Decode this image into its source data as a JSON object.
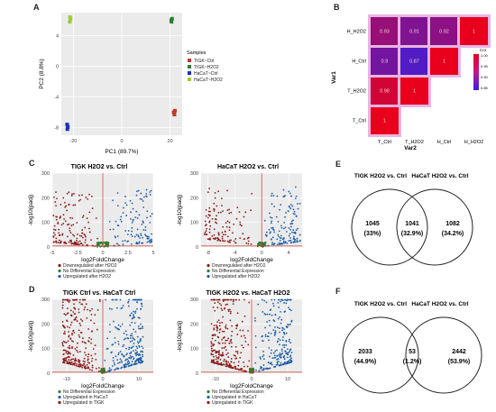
{
  "panels": {
    "A": {
      "letter": "A",
      "xlabel": "PC1 (89.7%)",
      "ylabel": "PC2 (8.8%)",
      "xticks": [
        "-20",
        "0",
        "20"
      ],
      "yticks": [
        "4",
        "0",
        "-4",
        "-8"
      ],
      "legend_title": "Samples",
      "legend": [
        {
          "label": "TIGK~Ctrl",
          "color": "#c0392b"
        },
        {
          "label": "TIGK~H2O2",
          "color": "#2e7d32"
        },
        {
          "label": "HaCaT~Ctrl",
          "color": "#1f2fbf"
        },
        {
          "label": "HaCaT~H2O2",
          "color": "#9acd32"
        }
      ],
      "chart_data": {
        "type": "scatter",
        "xlabel": "PC1 (89.7%)",
        "ylabel": "PC2 (8.8%)",
        "xlim": [
          -25,
          25
        ],
        "ylim": [
          -9,
          7
        ],
        "series": [
          {
            "name": "TIGK~Ctrl",
            "color": "#c0392b",
            "points": [
              [
                21.5,
                -6.0
              ],
              [
                22.0,
                -5.8
              ],
              [
                21.8,
                -6.3
              ]
            ]
          },
          {
            "name": "TIGK~H2O2",
            "color": "#2e7d32",
            "points": [
              [
                20.6,
                5.8
              ],
              [
                20.8,
                6.2
              ],
              [
                20.5,
                6.0
              ]
            ]
          },
          {
            "name": "HaCaT~Ctrl",
            "color": "#1f2fbf",
            "points": [
              [
                -22.6,
                -7.6
              ],
              [
                -22.3,
                -7.9
              ],
              [
                -22.5,
                -8.2
              ]
            ]
          },
          {
            "name": "HaCaT~H2O2",
            "color": "#9acd32",
            "points": [
              [
                -21.5,
                5.8
              ],
              [
                -21.2,
                6.2
              ],
              [
                -21.4,
                6.4
              ]
            ]
          }
        ]
      }
    },
    "B": {
      "letter": "B",
      "xlabel": "Var2",
      "ylabel": "Var1",
      "legend_title": "Cor",
      "legend_ticks": [
        "1.00",
        "0.95",
        "0.90",
        "0.85"
      ],
      "rows": [
        "H_H2O2",
        "H_Ctrl",
        "T_H2O2",
        "T_Ctrl"
      ],
      "cols": [
        "T_Ctrl",
        "T_H2O2",
        "H_Ctrl",
        "H_H2O2"
      ],
      "chart_data": {
        "type": "heatmap",
        "xlabel": "Var2",
        "ylabel": "Var1",
        "cells": [
          {
            "row": "T_Ctrl",
            "col": "T_Ctrl",
            "value": 1.0,
            "label": "1"
          },
          {
            "row": "T_H2O2",
            "col": "T_Ctrl",
            "value": 0.98,
            "label": "0.98"
          },
          {
            "row": "T_H2O2",
            "col": "T_H2O2",
            "value": 1.0,
            "label": "1"
          },
          {
            "row": "H_Ctrl",
            "col": "T_Ctrl",
            "value": 0.9,
            "label": "0.9"
          },
          {
            "row": "H_Ctrl",
            "col": "T_H2O2",
            "value": 0.87,
            "label": "0.87"
          },
          {
            "row": "H_Ctrl",
            "col": "H_Ctrl",
            "value": 1.0,
            "label": "1"
          },
          {
            "row": "H_H2O2",
            "col": "T_Ctrl",
            "value": 0.93,
            "label": "0.93"
          },
          {
            "row": "H_H2O2",
            "col": "T_H2O2",
            "value": 0.91,
            "label": "0.91"
          },
          {
            "row": "H_H2O2",
            "col": "H_Ctrl",
            "value": 0.92,
            "label": "0.92"
          },
          {
            "row": "H_H2O2",
            "col": "H_H2O2",
            "value": 1.0,
            "label": "1"
          }
        ]
      }
    },
    "C1": {
      "letter": "C",
      "title": "TIGK H2O2 vs. Ctrl",
      "xlabel": "log2FoldChange",
      "ylabel": "-log10(padj)",
      "xticks": [
        "-5",
        "-2.5",
        "0",
        "2.5",
        "5"
      ],
      "yticks": [
        "0",
        "100",
        "200",
        "300"
      ],
      "legend": [
        {
          "label": "Downregulated after H2O2",
          "color": "#8b1a1a"
        },
        {
          "label": "No Differential Expression",
          "color": "#2e7d32"
        },
        {
          "label": "Upregulated after H2O2",
          "color": "#1f5fa8"
        }
      ],
      "chart_data": {
        "type": "scatter",
        "xlabel": "log2FoldChange",
        "ylabel": "-log10(padj)",
        "xlim": [
          -5,
          5
        ],
        "ylim": [
          0,
          300
        ]
      }
    },
    "C2": {
      "title": "HaCaT H2O2 vs. Ctrl",
      "xlabel": "log2FoldChange",
      "ylabel": "-log10(padj)",
      "xticks": [
        "-8",
        "-4",
        "0",
        "4"
      ],
      "yticks": [
        "0",
        "100",
        "200",
        "300"
      ],
      "legend": [
        {
          "label": "Downregulated after H2O2",
          "color": "#8b1a1a"
        },
        {
          "label": "No Differential Expression",
          "color": "#2e7d32"
        },
        {
          "label": "Upregulated after H2O2",
          "color": "#1f5fa8"
        }
      ],
      "chart_data": {
        "type": "scatter",
        "xlabel": "log2FoldChange",
        "ylabel": "-log10(padj)",
        "xlim": [
          -9,
          6
        ],
        "ylim": [
          0,
          300
        ]
      }
    },
    "D1": {
      "letter": "D",
      "title": "TIGK Ctrl vs. HaCaT Ctrl",
      "xlabel": "log2FoldChange",
      "ylabel": "-log10(padj)",
      "xticks": [
        "-10",
        "0",
        "10"
      ],
      "yticks": [
        "0",
        "100",
        "200",
        "300"
      ],
      "legend": [
        {
          "label": "No Differential Expression",
          "color": "#2e7d32"
        },
        {
          "label": "Upregulated in HaCaT",
          "color": "#1f5fa8"
        },
        {
          "label": "Upregulated in TIGK",
          "color": "#8b1a1a"
        }
      ],
      "chart_data": {
        "type": "scatter",
        "xlabel": "log2FoldChange",
        "ylabel": "-log10(padj)",
        "xlim": [
          -14,
          14
        ],
        "ylim": [
          0,
          300
        ]
      }
    },
    "D2": {
      "title": "TIGK H2O2 vs. HaCaT H2O2",
      "xlabel": "log2FoldChange",
      "ylabel": "-log10(padj)",
      "xticks": [
        "-10",
        "0",
        "10"
      ],
      "yticks": [
        "0",
        "100",
        "200",
        "300"
      ],
      "legend": [
        {
          "label": "No Differential Expression",
          "color": "#2e7d32"
        },
        {
          "label": "Upregulated in HaCaT",
          "color": "#1f5fa8"
        },
        {
          "label": "Upregulated in TIGK",
          "color": "#8b1a1a"
        }
      ],
      "chart_data": {
        "type": "scatter",
        "xlabel": "log2FoldChange",
        "ylabel": "-log10(padj)",
        "xlim": [
          -14,
          14
        ],
        "ylim": [
          0,
          300
        ]
      }
    },
    "E": {
      "letter": "E",
      "left_title": "TIGK H2O2 vs. Ctrl",
      "right_title": "HaCaT H2O2 vs. Ctrl",
      "left_count": "1045",
      "left_pct": "(33%)",
      "mid_count": "1041",
      "mid_pct": "(32.9%)",
      "right_count": "1082",
      "right_pct": "(34.2%)"
    },
    "F": {
      "letter": "F",
      "left_title": "TIGK H2O2 vs. Ctrl",
      "right_title": "HaCaT H2O2 vs. Ctrl",
      "left_count": "2033",
      "left_pct": "(44.9%)",
      "mid_count": "53",
      "mid_pct": "(1.2%)",
      "right_count": "2442",
      "right_pct": "(53.9%)"
    }
  }
}
